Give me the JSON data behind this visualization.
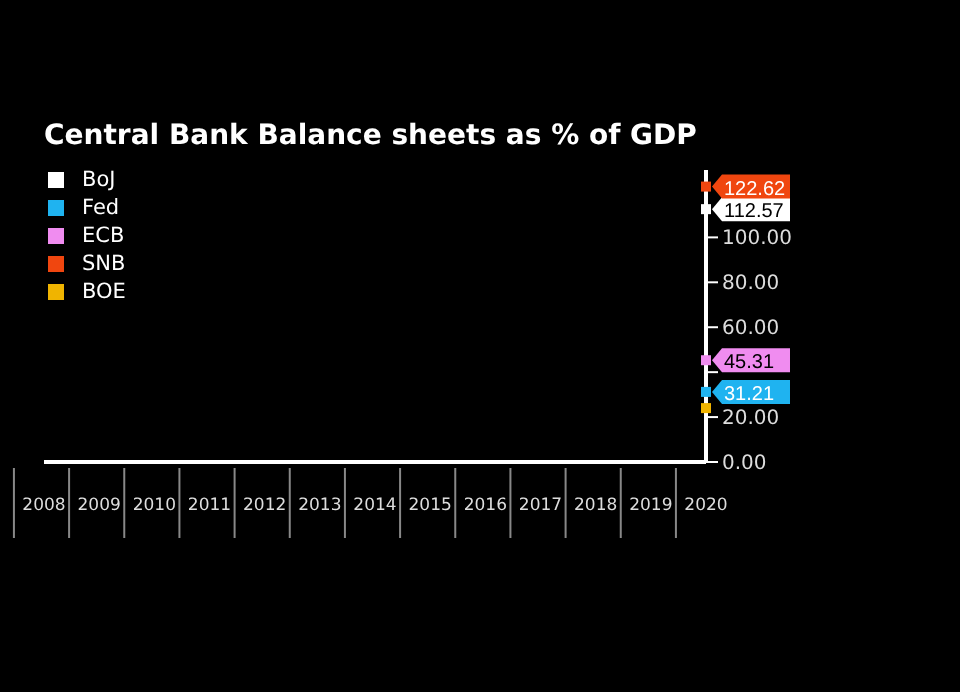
{
  "chart_data": {
    "type": "line",
    "title": "Central Bank Balance sheets as % of GDP",
    "categories": [
      "2008",
      "2009",
      "2010",
      "2011",
      "2012",
      "2013",
      "2014",
      "2015",
      "2016",
      "2017",
      "2018",
      "2019",
      "2020"
    ],
    "series": [
      {
        "name": "BoJ",
        "color": "#ffffff",
        "values": [
          null,
          null,
          null,
          null,
          null,
          null,
          null,
          null,
          null,
          null,
          null,
          null,
          112.57
        ],
        "value_labels": [
          null,
          null,
          null,
          null,
          null,
          null,
          null,
          null,
          null,
          null,
          null,
          null,
          "112.57"
        ]
      },
      {
        "name": "Fed",
        "color": "#1fb3f0",
        "values": [
          null,
          null,
          null,
          null,
          null,
          null,
          null,
          null,
          null,
          null,
          null,
          null,
          31.21
        ],
        "value_labels": [
          null,
          null,
          null,
          null,
          null,
          null,
          null,
          null,
          null,
          null,
          null,
          null,
          "31.21"
        ]
      },
      {
        "name": "ECB",
        "color": "#f08cf0",
        "values": [
          null,
          null,
          null,
          null,
          null,
          null,
          null,
          null,
          null,
          null,
          null,
          null,
          45.31
        ],
        "value_labels": [
          null,
          null,
          null,
          null,
          null,
          null,
          null,
          null,
          null,
          null,
          null,
          null,
          "45.31"
        ]
      },
      {
        "name": "SNB",
        "color": "#f0460f",
        "values": [
          null,
          null,
          null,
          null,
          null,
          null,
          null,
          null,
          null,
          null,
          null,
          null,
          122.62
        ],
        "value_labels": [
          null,
          null,
          null,
          null,
          null,
          null,
          null,
          null,
          null,
          null,
          null,
          null,
          "122.62"
        ]
      },
      {
        "name": "BOE",
        "color": "#f0b400",
        "values": [
          null,
          null,
          null,
          null,
          null,
          null,
          null,
          null,
          null,
          null,
          null,
          null,
          24
        ],
        "value_labels": [
          null,
          null,
          null,
          null,
          null,
          null,
          null,
          null,
          null,
          null,
          null,
          null,
          null
        ]
      }
    ],
    "ylim": [
      0,
      130
    ],
    "yticks": [
      {
        "value": 0,
        "label": "0.00"
      },
      {
        "value": 20,
        "label": "20.00"
      },
      {
        "value": 40,
        "label": null
      },
      {
        "value": 60,
        "label": "60.00"
      },
      {
        "value": 80,
        "label": "80.00"
      },
      {
        "value": 100,
        "label": "100.00"
      }
    ],
    "legend": "top left",
    "marker": "square"
  }
}
